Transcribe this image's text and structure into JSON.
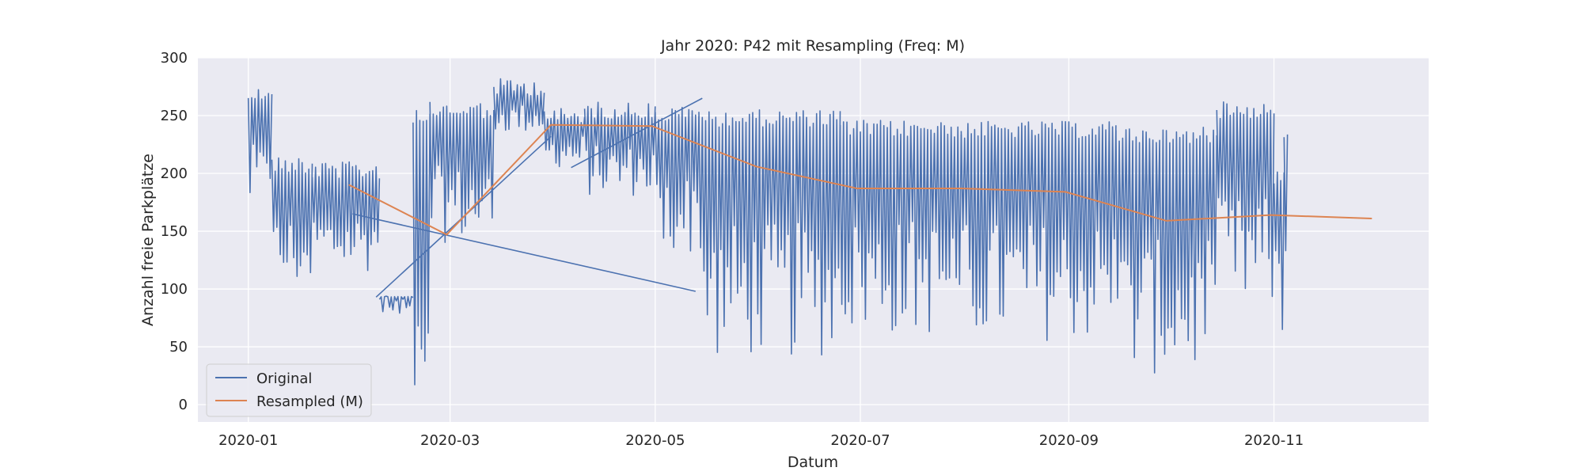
{
  "chart_data": {
    "type": "line",
    "title": "Jahr 2020: P42 mit Resampling (Freq: M)",
    "xlabel": "Datum",
    "ylabel": "Anzahl freie Parkplätze",
    "xlim": [
      "2019-12-17",
      "2020-12-17"
    ],
    "ylim": [
      -15,
      300
    ],
    "x_ticks": [
      "2020-01-01",
      "2020-03-01",
      "2020-05-01",
      "2020-07-01",
      "2020-09-01",
      "2020-11-01"
    ],
    "x_tick_labels": [
      "2020-01",
      "2020-03",
      "2020-05",
      "2020-07",
      "2020-09",
      "2020-11"
    ],
    "y_ticks": [
      0,
      50,
      100,
      150,
      200,
      250,
      300
    ],
    "y_tick_labels": [
      "0",
      "50",
      "100",
      "150",
      "200",
      "250",
      "300"
    ],
    "grid": true,
    "legend_position": "lower-left",
    "background": "#eaeaf2",
    "series": [
      {
        "name": "Original",
        "color": "#4c72b0",
        "style": "daily-oscillation",
        "segments": [
          {
            "start": "2020-01-01",
            "end": "2020-01-06",
            "high": 275,
            "low": 165
          },
          {
            "start": "2020-01-06",
            "end": "2020-01-08",
            "high": 272,
            "low": 160
          },
          {
            "start": "2020-01-08",
            "end": "2020-01-20",
            "high": 215,
            "low": 100
          },
          {
            "start": "2020-01-20",
            "end": "2020-02-09",
            "high": 210,
            "low": 115
          },
          {
            "start": "2020-02-09",
            "end": "2020-02-19",
            "high": 94,
            "low": 93
          },
          {
            "start": "2020-02-19",
            "end": "2020-02-24",
            "high": 258,
            "low": 5
          },
          {
            "start": "2020-02-24",
            "end": "2020-03-14",
            "high": 262,
            "low": 140
          },
          {
            "start": "2020-03-14",
            "end": "2020-03-29",
            "high": 282,
            "low": 235
          },
          {
            "start": "2020-03-29",
            "end": "2020-04-10",
            "high": 258,
            "low": 205
          },
          {
            "start": "2020-04-10",
            "end": "2020-05-01",
            "high": 262,
            "low": 180
          },
          {
            "start": "2020-05-01",
            "end": "2020-05-14",
            "high": 258,
            "low": 130
          },
          {
            "start": "2020-05-14",
            "end": "2020-06-25",
            "high": 255,
            "low": 40
          },
          {
            "start": "2020-06-25",
            "end": "2020-07-31",
            "high": 246,
            "low": 60
          },
          {
            "start": "2020-07-31",
            "end": "2020-09-15",
            "high": 245,
            "low": 55
          },
          {
            "start": "2020-09-15",
            "end": "2020-10-15",
            "high": 240,
            "low": 25
          },
          {
            "start": "2020-10-15",
            "end": "2020-11-01",
            "high": 262,
            "low": 80
          },
          {
            "start": "2020-11-01",
            "end": "2020-11-04",
            "high": 205,
            "low": 60
          },
          {
            "start": "2020-11-04",
            "end": "2020-11-05",
            "high": 240,
            "low": 80
          }
        ],
        "connectors": [
          {
            "x": [
              "2020-02-01",
              "2020-05-13"
            ],
            "y": [
              165,
              98
            ]
          },
          {
            "x": [
              "2020-02-08",
              "2020-03-31"
            ],
            "y": [
              93,
              232
            ]
          },
          {
            "x": [
              "2020-04-06",
              "2020-05-15"
            ],
            "y": [
              205,
              265
            ]
          }
        ]
      },
      {
        "name": "Resampled (M)",
        "color": "#dd8452",
        "x": [
          "2020-01-31",
          "2020-02-29",
          "2020-03-31",
          "2020-04-30",
          "2020-05-31",
          "2020-06-30",
          "2020-07-31",
          "2020-08-31",
          "2020-09-30",
          "2020-10-31",
          "2020-11-30"
        ],
        "values": [
          190,
          147,
          242,
          241,
          206,
          187,
          187,
          184,
          159,
          164,
          161
        ]
      }
    ]
  }
}
